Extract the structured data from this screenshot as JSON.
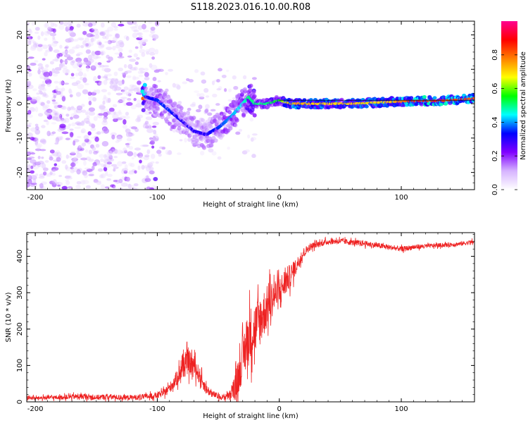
{
  "figure": {
    "title": "S118.2023.016.10.00.R08"
  },
  "chart_data": [
    {
      "type": "heatmap",
      "title": "S118.2023.016.10.00.R08",
      "xlabel": "Height of straight line (km)",
      "ylabel": "Frequency (Hz)",
      "xlim": [
        -207,
        160
      ],
      "ylim": [
        -25,
        24
      ],
      "x_ticks": [
        -200,
        -100,
        0,
        100
      ],
      "x_tick_labels": [
        "-200",
        "-100",
        "0",
        "100"
      ],
      "y_ticks": [
        -20,
        -10,
        0,
        10,
        20
      ],
      "y_tick_labels": [
        "-20",
        "-10",
        "0",
        "10",
        "20"
      ],
      "colorbar": {
        "label": "Normalized spectral amplitude",
        "range": [
          0,
          1
        ],
        "ticks": [
          0.0,
          0.2,
          0.4,
          0.6,
          0.8
        ],
        "tick_labels": [
          "0.0",
          "0.2",
          "0.4",
          "0.6",
          "0.8"
        ],
        "colormap": [
          "#ffffff",
          "#d6b3ff",
          "#8000ff",
          "#0000ff",
          "#00ffff",
          "#00ff00",
          "#ffff00",
          "#ff8000",
          "#ff0000",
          "#ff0090"
        ]
      },
      "ridge": [
        {
          "x": -110,
          "f": 2,
          "a": 0.3
        },
        {
          "x": -100,
          "f": 1,
          "a": 0.35
        },
        {
          "x": -90,
          "f": -2,
          "a": 0.35
        },
        {
          "x": -80,
          "f": -5,
          "a": 0.3
        },
        {
          "x": -70,
          "f": -8,
          "a": 0.3
        },
        {
          "x": -60,
          "f": -9,
          "a": 0.3
        },
        {
          "x": -50,
          "f": -7,
          "a": 0.35
        },
        {
          "x": -40,
          "f": -4,
          "a": 0.4
        },
        {
          "x": -30,
          "f": 0,
          "a": 0.45
        },
        {
          "x": -25,
          "f": 2,
          "a": 0.5
        },
        {
          "x": -20,
          "f": 0,
          "a": 0.5
        },
        {
          "x": -10,
          "f": 0,
          "a": 0.5
        },
        {
          "x": 0,
          "f": 1,
          "a": 0.55
        },
        {
          "x": 10,
          "f": 0,
          "a": 0.75
        },
        {
          "x": 30,
          "f": 0,
          "a": 0.7
        },
        {
          "x": 60,
          "f": 0,
          "a": 0.7
        },
        {
          "x": 90,
          "f": 0.5,
          "a": 0.7
        },
        {
          "x": 110,
          "f": 0.8,
          "a": 0.85
        },
        {
          "x": 130,
          "f": 0.8,
          "a": 0.85
        },
        {
          "x": 160,
          "f": 1.5,
          "a": 0.8
        }
      ]
    },
    {
      "type": "line",
      "xlabel": "Height of straight line (km)",
      "ylabel": "SNR (10 * v/v)",
      "xlim": [
        -207,
        160
      ],
      "ylim": [
        0,
        465
      ],
      "x_ticks": [
        -200,
        -100,
        0,
        100
      ],
      "x_tick_labels": [
        "-200",
        "-100",
        "0",
        "100"
      ],
      "y_ticks": [
        0,
        100,
        200,
        300,
        400
      ],
      "y_tick_labels": [
        "0",
        "100",
        "200",
        "300",
        "400"
      ],
      "color": "#ee2222",
      "series": [
        {
          "x": [
            -207,
            -200,
            -190,
            -180,
            -170,
            -160,
            -150,
            -140,
            -130,
            -120,
            -110,
            -100,
            -95,
            -90,
            -85,
            -80,
            -75,
            -70,
            -65,
            -60,
            -55,
            -50,
            -45,
            -40,
            -35,
            -30,
            -25,
            -20,
            -15,
            -10,
            -5,
            0,
            5,
            10,
            15,
            20,
            25,
            30,
            40,
            50,
            60,
            70,
            80,
            90,
            100,
            110,
            120,
            130,
            140,
            150,
            160
          ],
          "values": [
            12,
            10,
            12,
            12,
            14,
            15,
            12,
            14,
            12,
            12,
            14,
            18,
            24,
            38,
            60,
            90,
            110,
            100,
            70,
            35,
            22,
            15,
            12,
            18,
            50,
            120,
            180,
            200,
            230,
            260,
            290,
            300,
            330,
            350,
            380,
            410,
            425,
            432,
            440,
            442,
            438,
            435,
            430,
            425,
            420,
            425,
            428,
            430,
            432,
            435,
            440
          ],
          "noise": [
            6,
            5,
            6,
            6,
            7,
            8,
            7,
            8,
            7,
            7,
            8,
            9,
            10,
            14,
            20,
            30,
            35,
            30,
            22,
            15,
            10,
            8,
            7,
            15,
            45,
            60,
            80,
            75,
            70,
            60,
            50,
            45,
            40,
            30,
            20,
            14,
            10,
            9,
            8,
            8,
            8,
            8,
            8,
            7,
            7,
            7,
            6,
            6,
            6,
            6,
            6
          ]
        }
      ]
    }
  ]
}
